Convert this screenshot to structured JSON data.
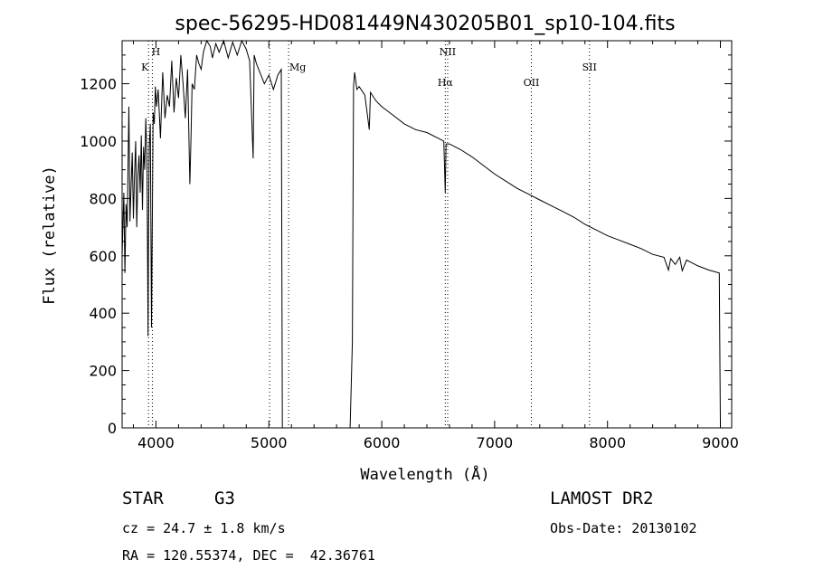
{
  "chart_data": {
    "type": "line",
    "title": "spec-56295-HD081449N430205B01_sp10-104.fits",
    "xlabel": "Wavelength (Å)",
    "ylabel": "Flux (relative)",
    "xlim": [
      3700,
      9100
    ],
    "ylim": [
      0,
      1350
    ],
    "xticks": [
      4000,
      5000,
      6000,
      7000,
      8000,
      9000
    ],
    "yticks": [
      0,
      200,
      400,
      600,
      800,
      1000,
      1200
    ],
    "grid": false,
    "spectral_lines": [
      {
        "label": "H",
        "wavelength": 3968
      },
      {
        "label": "K",
        "wavelength": 3934
      },
      {
        "label": "Mg",
        "wavelength": 5175
      },
      {
        "label": "NII",
        "wavelength": 6584
      },
      {
        "label": "Hα",
        "wavelength": 6563
      },
      {
        "label": "OII",
        "wavelength": 7325
      },
      {
        "label": "SII",
        "wavelength": 7840
      }
    ],
    "line_wavelengths_extra": [
      5007
    ],
    "series": [
      {
        "x": [
          3700,
          3715,
          3725,
          3735,
          3745,
          3760,
          3770,
          3780,
          3790,
          3800,
          3810,
          3820,
          3830,
          3840,
          3850,
          3860,
          3870,
          3880,
          3890,
          3900,
          3910,
          3920,
          3930,
          3934,
          3940,
          3950,
          3960,
          3968,
          3975,
          3985,
          3995,
          4005,
          4020,
          4040,
          4060,
          4080,
          4100,
          4120,
          4140,
          4160,
          4180,
          4200,
          4220,
          4240,
          4260,
          4280,
          4300,
          4310,
          4320,
          4340,
          4360,
          4380,
          4400,
          4420,
          4450,
          4480,
          4500,
          4530,
          4560,
          4600,
          4640,
          4680,
          4720,
          4760,
          4800,
          4830,
          4861,
          4870,
          4890,
          4920,
          4960,
          5000,
          5040,
          5080,
          5110,
          5120,
          5130,
          5140,
          5700,
          5720,
          5740,
          5750,
          5760,
          5780,
          5800,
          5850,
          5890,
          5900,
          5950,
          6000,
          6100,
          6200,
          6300,
          6400,
          6500,
          6550,
          6563,
          6570,
          6600,
          6700,
          6800,
          6900,
          7000,
          7100,
          7200,
          7300,
          7400,
          7500,
          7600,
          7700,
          7800,
          7900,
          8000,
          8100,
          8200,
          8300,
          8400,
          8500,
          8540,
          8560,
          8600,
          8640,
          8662,
          8700,
          8800,
          8900,
          8990,
          9000
        ],
        "y": [
          600,
          820,
          540,
          780,
          700,
          1120,
          720,
          850,
          960,
          730,
          880,
          1000,
          700,
          880,
          950,
          820,
          1020,
          760,
          980,
          900,
          1080,
          940,
          320,
          700,
          980,
          1060,
          350,
          760,
          1100,
          1060,
          1190,
          1120,
          1180,
          1010,
          1240,
          1080,
          1160,
          1120,
          1280,
          1100,
          1220,
          1150,
          1300,
          1200,
          1080,
          1250,
          850,
          1000,
          1200,
          1180,
          1300,
          1270,
          1250,
          1310,
          1350,
          1330,
          1290,
          1340,
          1310,
          1350,
          1290,
          1345,
          1300,
          1350,
          1320,
          1280,
          940,
          1300,
          1270,
          1240,
          1200,
          1230,
          1180,
          1230,
          1250,
          0,
          0,
          0,
          0,
          0,
          300,
          1190,
          1240,
          1180,
          1190,
          1160,
          1040,
          1170,
          1140,
          1120,
          1090,
          1060,
          1040,
          1030,
          1010,
          1000,
          820,
          990,
          990,
          970,
          945,
          915,
          885,
          860,
          835,
          815,
          795,
          775,
          755,
          735,
          710,
          690,
          670,
          655,
          640,
          625,
          605,
          595,
          550,
          590,
          570,
          595,
          548,
          585,
          565,
          550,
          540,
          0
        ]
      }
    ]
  },
  "info": {
    "object_class": "STAR",
    "subclass": "G3",
    "survey": "LAMOST DR2",
    "redshift": "cz = 24.7 ± 1.8 km/s",
    "obs_date": "Obs-Date: 20130102",
    "coords": "RA = 120.55374, DEC =  42.36761"
  },
  "colors": {
    "line": "#000000",
    "background": "#ffffff"
  }
}
